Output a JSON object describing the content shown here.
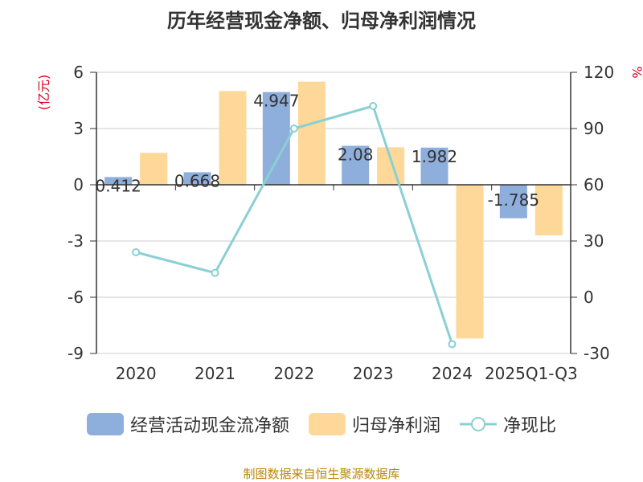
{
  "chart_data": {
    "type": "bar+line",
    "title": "历年经营现金净额、归母净利润情况",
    "categories": [
      "2020",
      "2021",
      "2022",
      "2023",
      "2024",
      "2025Q1-Q3"
    ],
    "left_axis": {
      "unit": "(亿元)",
      "ylim": [
        -9,
        6
      ],
      "ticks": [
        6,
        3,
        0,
        -3,
        -6,
        -9
      ]
    },
    "right_axis": {
      "unit": "%",
      "ylim": [
        -30,
        120
      ],
      "ticks": [
        120,
        90,
        60,
        30,
        0,
        -30
      ]
    },
    "series": [
      {
        "name": "经营活动现金流净额",
        "type": "bar",
        "axis": "left",
        "color": "#8eaedb",
        "values": [
          0.412,
          0.668,
          4.947,
          2.08,
          1.982,
          -1.785
        ],
        "labels": [
          "0.412",
          "0.668",
          "4.947",
          "2.08",
          "1.982",
          "-1.785"
        ]
      },
      {
        "name": "归母净利润",
        "type": "bar",
        "axis": "left",
        "color": "#fdd898",
        "values": [
          1.7,
          5.0,
          5.5,
          2.0,
          -8.2,
          -2.7
        ]
      },
      {
        "name": "净现比",
        "type": "line",
        "axis": "right",
        "color": "#89d0d6",
        "values": [
          24,
          13,
          90,
          102,
          -25,
          null
        ]
      }
    ]
  },
  "source": "制图数据来自恒生聚源数据库"
}
